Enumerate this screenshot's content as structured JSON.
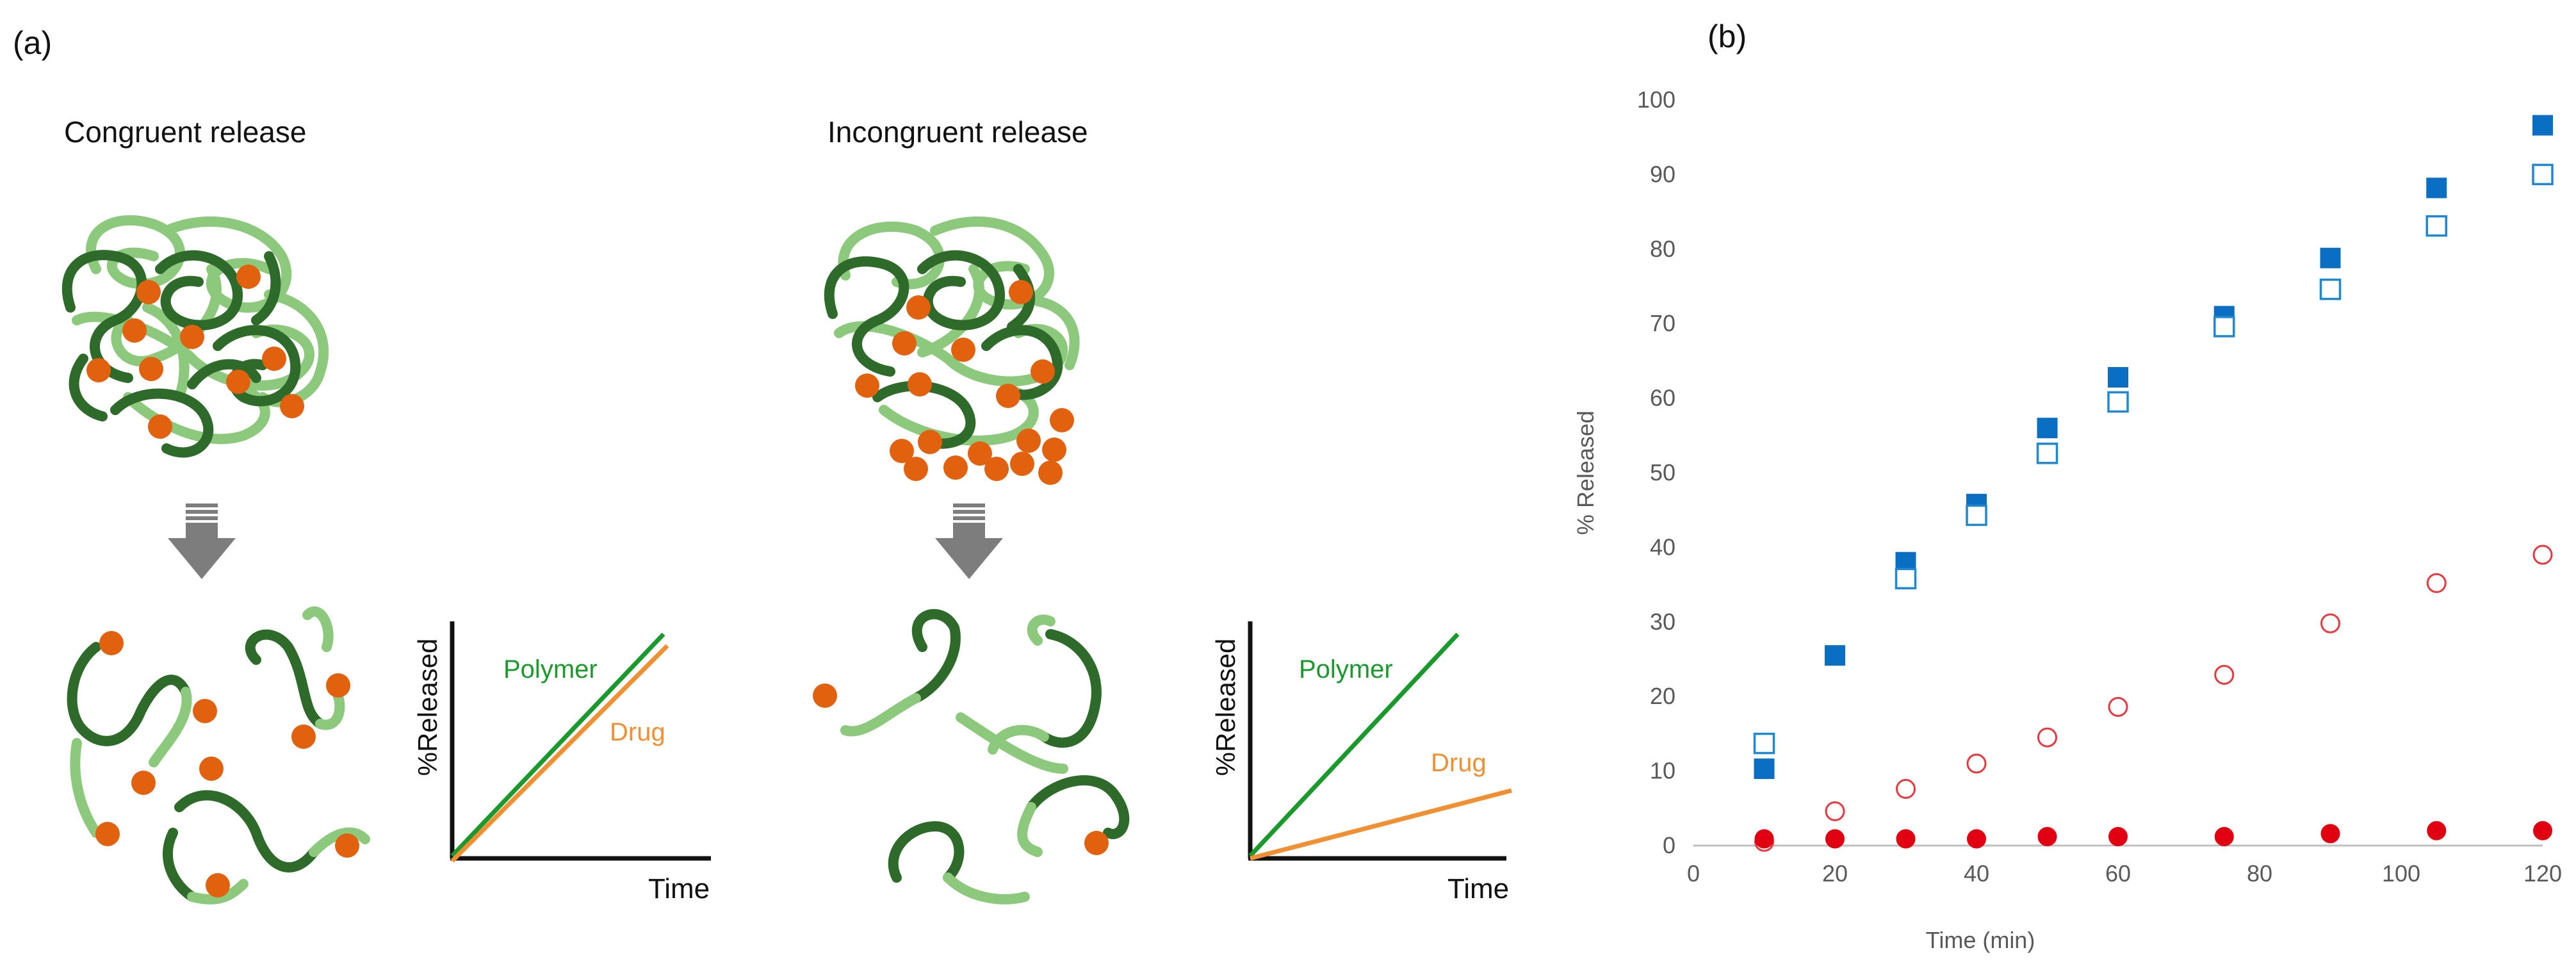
{
  "panel_a": {
    "label": "(a)",
    "congruent": {
      "title": "Congruent release",
      "graph": {
        "ylabel": "%Released",
        "xlabel": "Time",
        "polymer_label": "Polymer",
        "drug_label": "Drug"
      }
    },
    "incongruent": {
      "title": "Incongruent release",
      "graph": {
        "ylabel": "%Released",
        "xlabel": "Time",
        "polymer_label": "Polymer",
        "drug_label": "Drug"
      }
    },
    "colors": {
      "polymer_dark": "#2e6b2a",
      "polymer_light": "#8cc97c",
      "drug": "#e2610f",
      "polymer_line": "#1a9a2c",
      "drug_line": "#f09033",
      "arrow": "#7d7d7d"
    }
  },
  "panel_b": {
    "label": "(b)"
  },
  "chart_data": {
    "type": "scatter",
    "xlabel": "Time (min)",
    "ylabel": "% Released",
    "xlim": [
      0,
      120
    ],
    "ylim": [
      0,
      100
    ],
    "xticks": [
      0,
      20,
      40,
      60,
      80,
      100,
      120
    ],
    "yticks": [
      0,
      10,
      20,
      30,
      40,
      50,
      60,
      70,
      80,
      90,
      100
    ],
    "grid": false,
    "legend": "none",
    "series": [
      {
        "marker": "square",
        "filled": true,
        "color": "#0a6fc2",
        "points": [
          [
            10,
            10.3
          ],
          [
            20,
            25.5
          ],
          [
            30,
            38
          ],
          [
            40,
            45.8
          ],
          [
            50,
            56
          ],
          [
            60,
            62.8
          ],
          [
            75,
            71
          ],
          [
            90,
            78.8
          ],
          [
            105,
            88.2
          ],
          [
            120,
            96.6
          ]
        ]
      },
      {
        "marker": "square",
        "filled": false,
        "color": "#1f88d4",
        "points": [
          [
            10,
            13.7
          ],
          [
            30,
            35.8
          ],
          [
            40,
            44.3
          ],
          [
            50,
            52.6
          ],
          [
            60,
            59.5
          ],
          [
            75,
            69.6
          ],
          [
            90,
            74.6
          ],
          [
            105,
            83.1
          ],
          [
            120,
            90
          ]
        ]
      },
      {
        "marker": "circle",
        "filled": false,
        "color": "#e8383f",
        "points": [
          [
            10,
            0.5
          ],
          [
            20,
            4.6
          ],
          [
            30,
            7.6
          ],
          [
            40,
            11
          ],
          [
            50,
            14.5
          ],
          [
            60,
            18.6
          ],
          [
            75,
            22.9
          ],
          [
            90,
            29.8
          ],
          [
            105,
            35.2
          ],
          [
            120,
            39
          ]
        ]
      },
      {
        "marker": "circle",
        "filled": true,
        "color": "#e00012",
        "points": [
          [
            10,
            0.9
          ],
          [
            20,
            0.9
          ],
          [
            30,
            0.9
          ],
          [
            40,
            0.9
          ],
          [
            50,
            1.2
          ],
          [
            60,
            1.2
          ],
          [
            75,
            1.2
          ],
          [
            90,
            1.6
          ],
          [
            105,
            2
          ],
          [
            120,
            2
          ]
        ]
      }
    ]
  }
}
